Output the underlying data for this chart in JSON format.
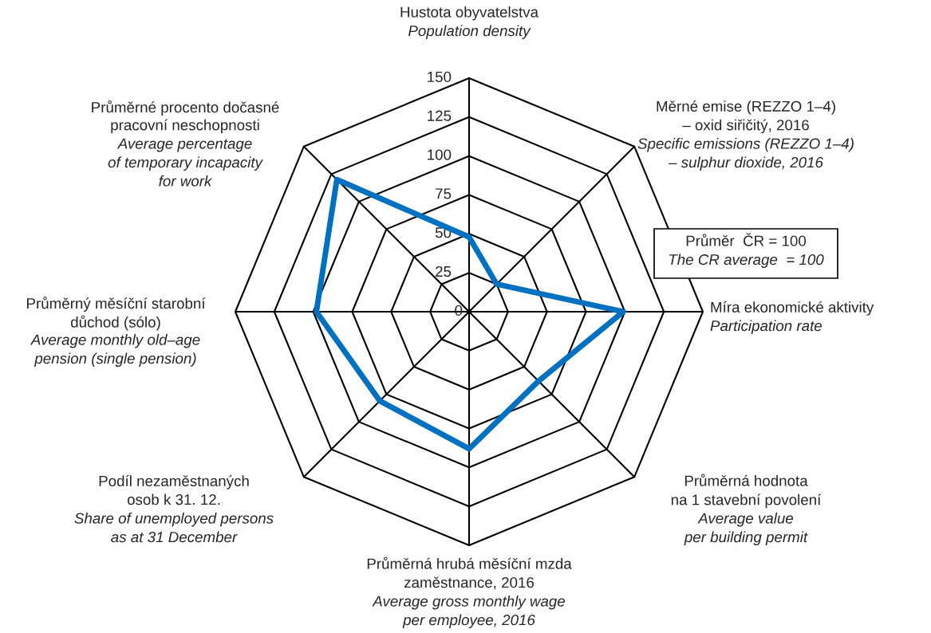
{
  "chart_data": {
    "type": "radar",
    "categories": [
      "Hustota obyvatelstva\n\nPopulation density",
      "Měrné emise (REZZO 1–4)\n– oxid siřičitý, 2016\n\nSpecific emissions (REZZO 1–4)\n– sulphur dioxide, 2016",
      "Míra ekonomické aktivity\n\nParticipation rate",
      "Průměrná hodnota\nna 1 stavební povolení\n\nAverage value\nper building permit",
      "Průměrná hrubá měsíční mzda\nzaměstnance, 2016\n\nAverage gross monthly wage\nper employee, 2016",
      "Podíl nezaměstnaných\nosob k 31. 12.\n\nShare of unemployed persons\nas at 31 December",
      "Průměrný měsíční starobní\ndůchod (sólo)\n\nAverage monthly old–age\npension (single pension)",
      "Průměrné procento dočasné\npracovní neschopnosti\n\nAverage percentage\nof temporary incapacity\nfor work"
    ],
    "series": [
      {
        "color": "#0070c0",
        "values": [
          48,
          25,
          99,
          63,
          88,
          81,
          98,
          120
        ]
      }
    ],
    "ylim": [
      0,
      150
    ],
    "yticks": [
      0,
      25,
      50,
      75,
      100,
      125,
      150
    ],
    "grid": true,
    "annotations": [
      "Průměr  ČR = 100",
      "The CR average  = 100"
    ]
  }
}
